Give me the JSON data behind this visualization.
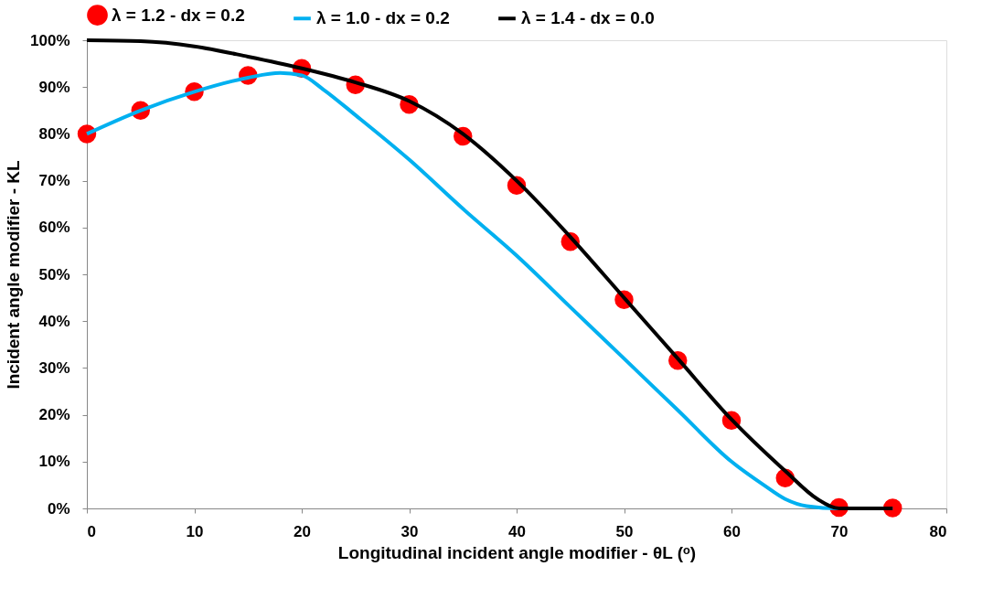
{
  "chart_data": {
    "type": "line",
    "xlabel": "Longitudinal incident angle modifier - θL (ᵒ)",
    "ylabel": "Incident angle modifier - KL",
    "xlim": [
      0,
      80
    ],
    "xticks": [
      0,
      10,
      20,
      30,
      40,
      50,
      60,
      70,
      80
    ],
    "ylim": [
      0,
      100
    ],
    "yticks": [
      {
        "value": 0,
        "label": "0%"
      },
      {
        "value": 10,
        "label": "10%"
      },
      {
        "value": 20,
        "label": "20%"
      },
      {
        "value": 30,
        "label": "30%"
      },
      {
        "value": 40,
        "label": "40%"
      },
      {
        "value": 50,
        "label": "50%"
      },
      {
        "value": 60,
        "label": "60%"
      },
      {
        "value": 70,
        "label": "70%"
      },
      {
        "value": 80,
        "label": "80%"
      },
      {
        "value": 90,
        "label": "90%"
      },
      {
        "value": 100,
        "label": "100%"
      }
    ],
    "grid": false,
    "legend": "top",
    "line_style": "solid",
    "series": [
      {
        "name": "λ = 1.2 - dx = 0.2",
        "type": "scatter",
        "marker": "circle",
        "color": "#ff0000",
        "x": [
          0,
          5,
          10,
          15,
          20,
          25,
          30,
          35,
          40,
          45,
          50,
          55,
          60,
          65,
          70,
          75
        ],
        "values": [
          80,
          85,
          89,
          92.5,
          94,
          90.5,
          86.3,
          79.5,
          69,
          57,
          44.6,
          31.6,
          18.8,
          6.5,
          0.2,
          0.1
        ]
      },
      {
        "name": "λ = 1.0 - dx = 0.2",
        "color": "#00b0f0",
        "x": [
          0,
          5,
          10,
          15,
          18,
          20,
          22,
          25,
          30,
          35,
          40,
          45,
          50,
          55,
          60,
          63,
          65,
          67,
          70,
          75
        ],
        "values": [
          80,
          85,
          89,
          92,
          93,
          92.5,
          89.5,
          84,
          74.5,
          64,
          54,
          43,
          32,
          21,
          10,
          5,
          2,
          0.5,
          0,
          0
        ]
      },
      {
        "name": "λ = 1.4 - dx = 0.0",
        "color": "#000000",
        "x": [
          0,
          5,
          10,
          15,
          20,
          25,
          30,
          35,
          40,
          45,
          50,
          55,
          60,
          65,
          68,
          70,
          75
        ],
        "values": [
          100,
          99.8,
          98.7,
          96.5,
          94,
          91,
          87,
          80,
          70,
          58,
          45,
          32,
          19,
          8,
          2,
          0,
          0
        ]
      }
    ]
  }
}
